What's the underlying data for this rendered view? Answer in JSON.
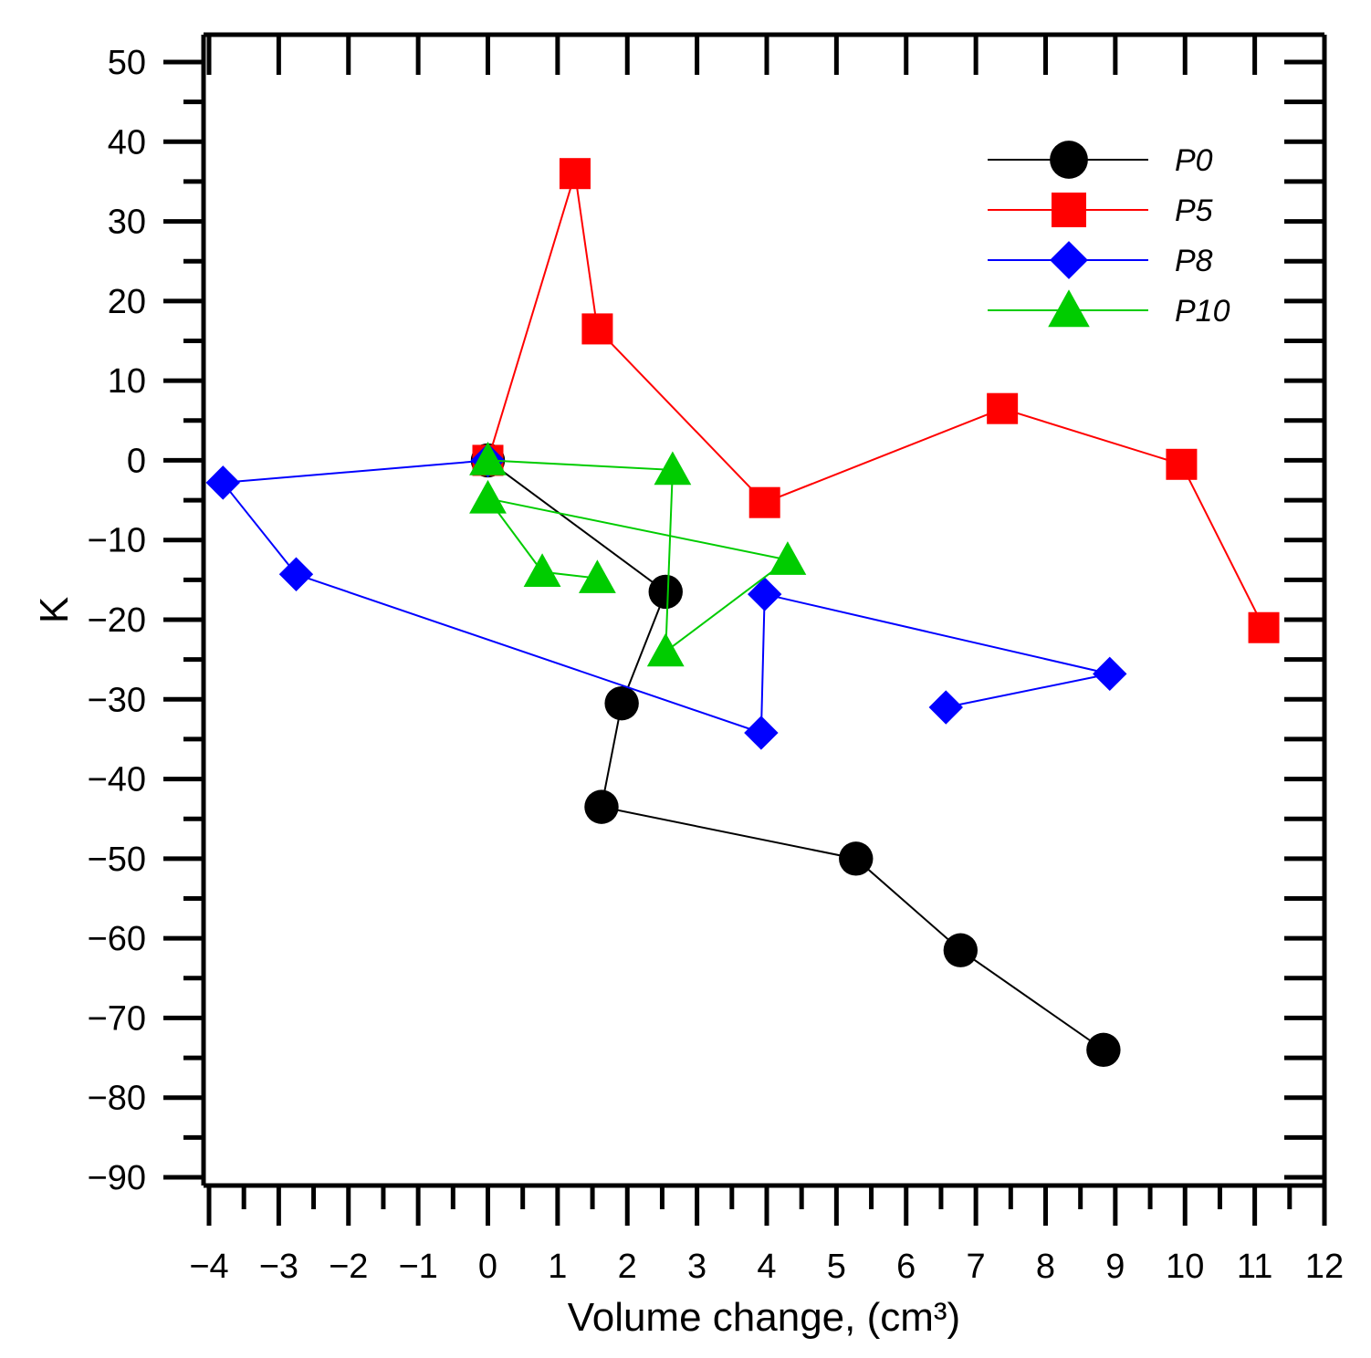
{
  "chart_data": {
    "type": "scatter",
    "title": "",
    "xlabel": "Volume change, (cm³)",
    "ylabel": "K",
    "xlim": [
      -4,
      12
    ],
    "ylim": [
      -90,
      50
    ],
    "xticks": [
      -4,
      -3,
      -2,
      -1,
      0,
      1,
      2,
      3,
      4,
      5,
      6,
      7,
      8,
      9,
      10,
      11,
      12
    ],
    "yticks": [
      50,
      40,
      30,
      20,
      10,
      0,
      -10,
      -20,
      -30,
      -40,
      -50,
      -60,
      -70,
      -80,
      -90
    ],
    "x_tick_labels": [
      "−4",
      "−3",
      "−2",
      "−1",
      "0",
      "1",
      "2",
      "3",
      "4",
      "5",
      "6",
      "7",
      "8",
      "9",
      "10",
      "11",
      "12"
    ],
    "y_tick_labels": [
      "50",
      "40",
      "30",
      "20",
      "10",
      "0",
      "−10",
      "−20",
      "−30",
      "−40",
      "−50",
      "−60",
      "−70",
      "−80",
      "−90"
    ],
    "grid": false,
    "legend_position": "top-right",
    "series": [
      {
        "name": "P0",
        "color": "#000000",
        "marker": "circle",
        "x": [
          0,
          2.55,
          1.92,
          1.63,
          5.28,
          6.78,
          8.83
        ],
        "y": [
          0,
          -16.5,
          -30.5,
          -43.5,
          -50,
          -61.5,
          -74
        ]
      },
      {
        "name": "P5",
        "color": "#ff0000",
        "marker": "square",
        "x": [
          0,
          1.25,
          1.57,
          3.97,
          7.38,
          9.95,
          11.13
        ],
        "y": [
          0,
          36,
          16.5,
          -5.3,
          6.5,
          -0.5,
          -21
        ]
      },
      {
        "name": "P8",
        "color": "#0000ff",
        "marker": "diamond",
        "x": [
          0,
          -3.8,
          -2.75,
          3.92,
          3.97,
          8.92,
          6.57
        ],
        "y": [
          0,
          -2.8,
          -14.3,
          -34.2,
          -16.8,
          -26.8,
          -31
        ]
      },
      {
        "name": "P10",
        "color": "#00cc00",
        "marker": "triangle",
        "x": [
          0,
          2.65,
          2.55,
          4.3,
          0,
          0.78,
          1.57
        ],
        "y": [
          0,
          -1.2,
          -24,
          -12.5,
          -4.8,
          -14,
          -14.8
        ]
      }
    ]
  }
}
